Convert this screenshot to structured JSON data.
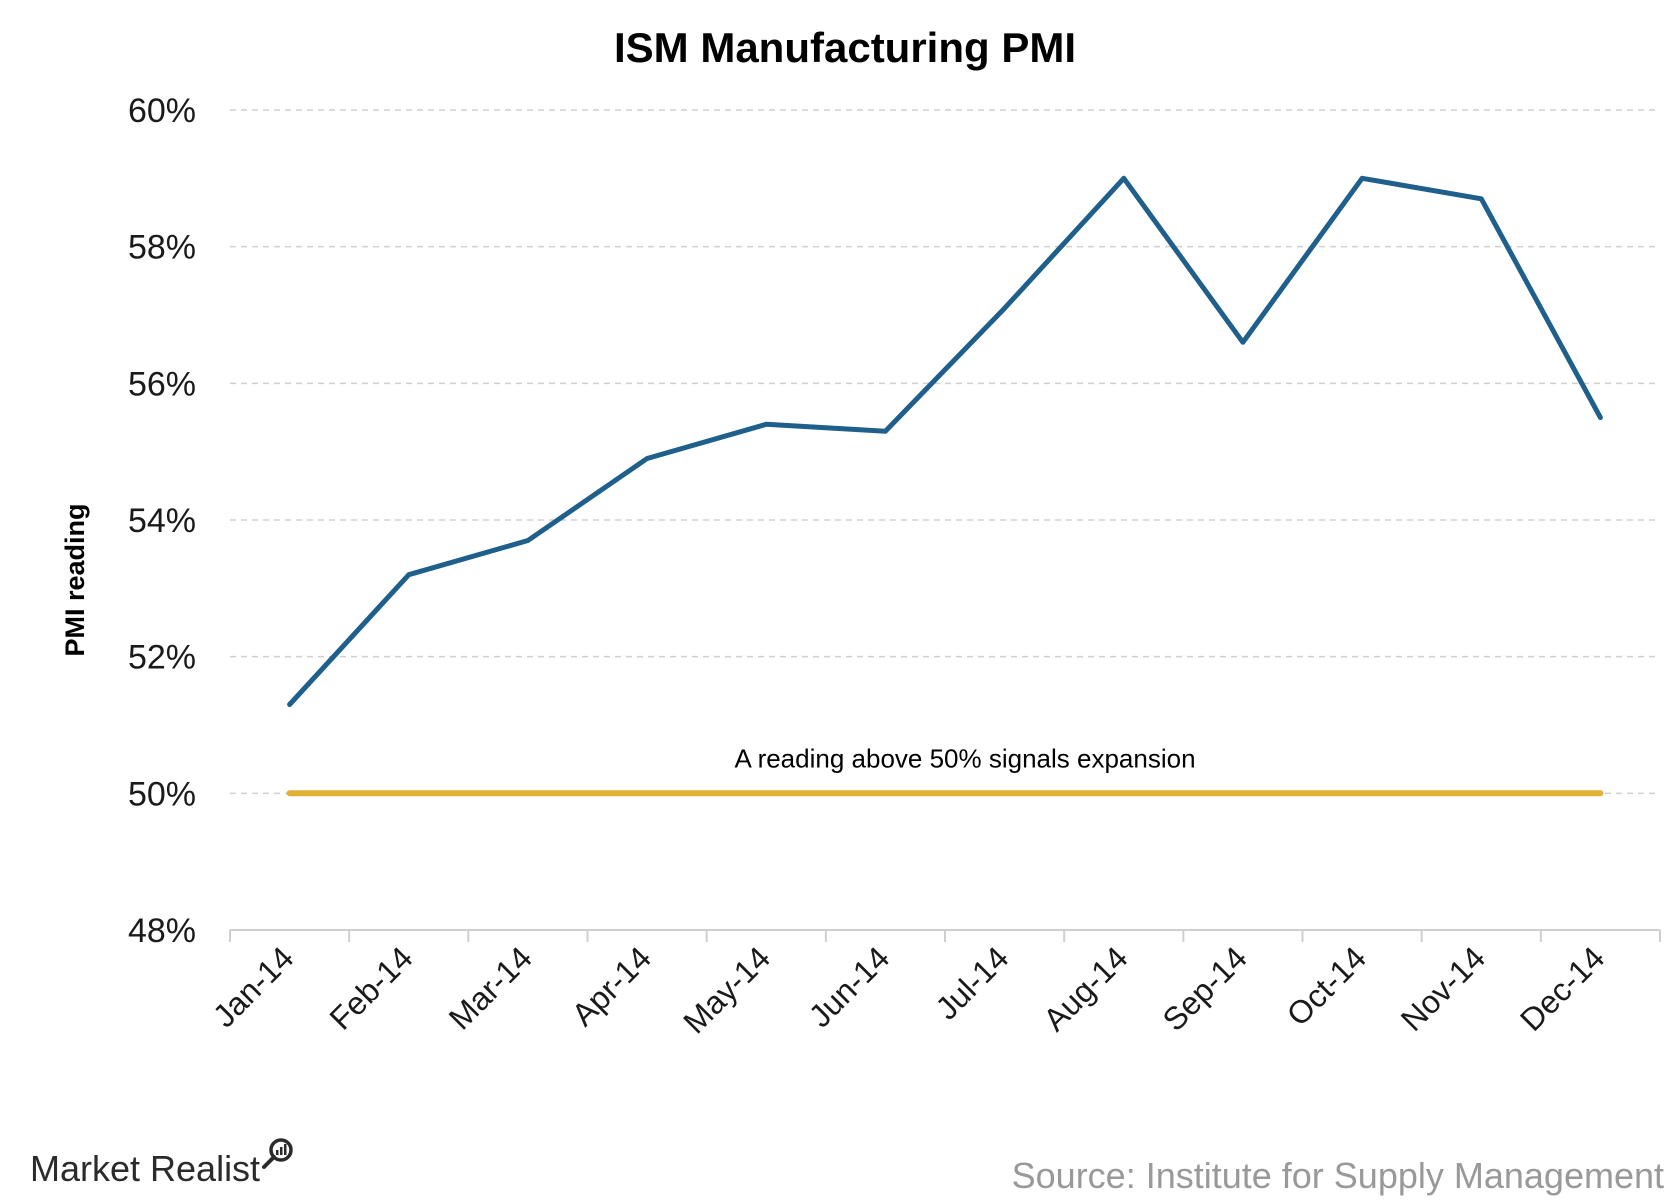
{
  "chart_data": {
    "type": "line",
    "title": "ISM Manufacturing PMI",
    "ylabel": "PMI reading",
    "xlabel": "",
    "categories": [
      "Jan-14",
      "Feb-14",
      "Mar-14",
      "Apr-14",
      "May-14",
      "Jun-14",
      "Jul-14",
      "Aug-14",
      "Sep-14",
      "Oct-14",
      "Nov-14",
      "Dec-14"
    ],
    "series": [
      {
        "values": [
          51.3,
          53.2,
          53.7,
          54.9,
          55.4,
          55.3,
          57.1,
          59.0,
          56.6,
          59.0,
          58.7,
          55.5
        ],
        "color": "#1f5f8b"
      },
      {
        "values": [
          50,
          50,
          50,
          50,
          50,
          50,
          50,
          50,
          50,
          50,
          50,
          50
        ],
        "color": "#e3b136"
      }
    ],
    "ylim": [
      48,
      60
    ],
    "yticks": [
      48,
      50,
      52,
      54,
      56,
      58,
      60
    ],
    "ytick_labels": [
      "48%",
      "50%",
      "52%",
      "54%",
      "56%",
      "58%",
      "60%"
    ],
    "grid": true,
    "annotations": [
      {
        "text": "A reading above 50% signals expansion"
      }
    ]
  },
  "footer": {
    "logo": "Market Realist",
    "source": "Source: Institute for Supply Management"
  }
}
